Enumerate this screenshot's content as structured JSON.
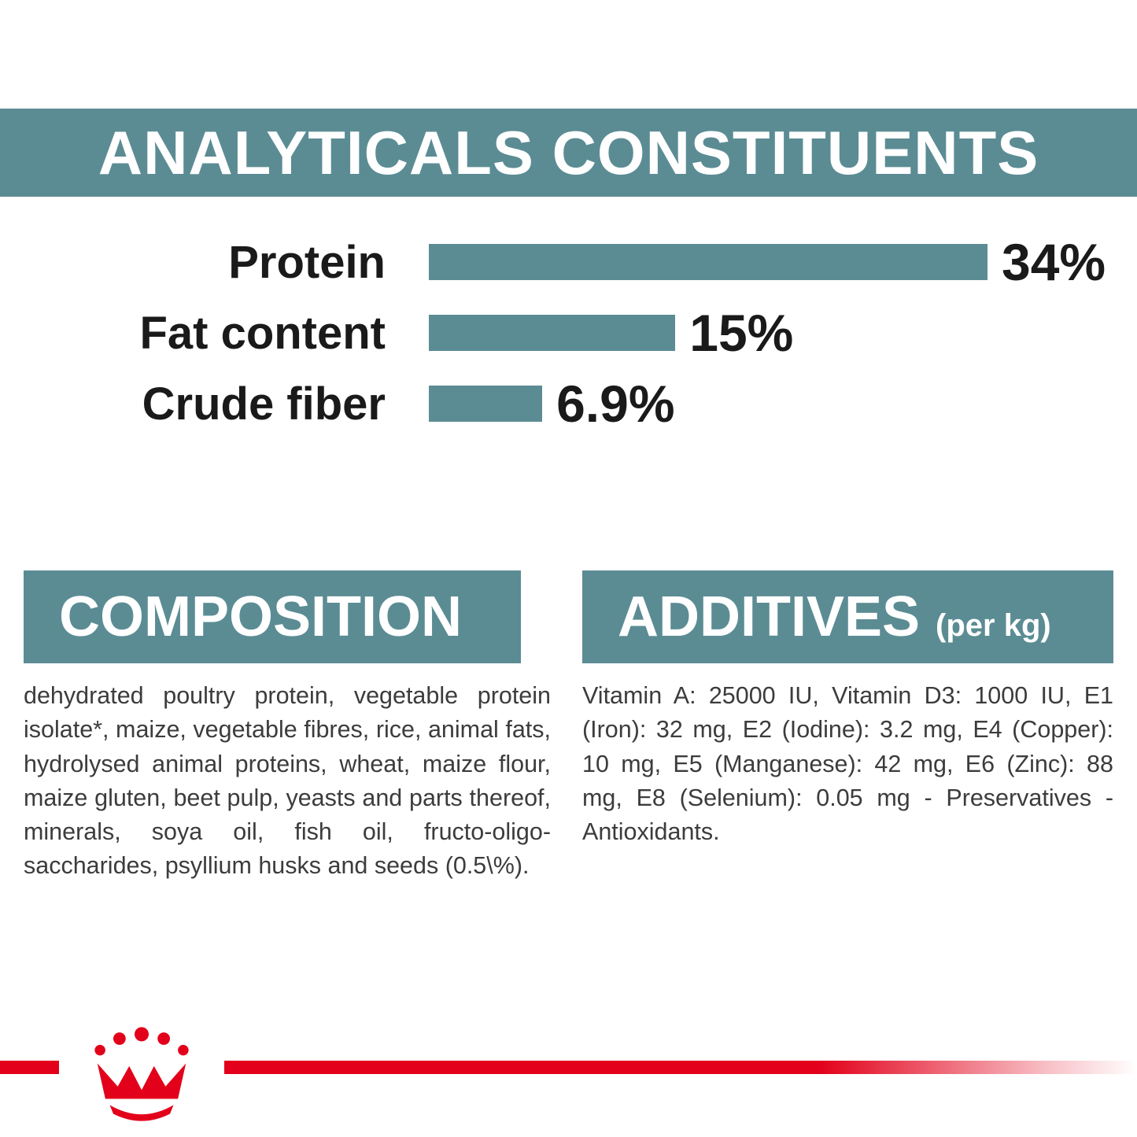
{
  "page": {
    "background": "#ffffff",
    "accent_teal": "#5b8c94",
    "brand_red": "#e2001a",
    "text_dark": "#1a1a1a",
    "body_text": "#3c3c3c"
  },
  "analyticals": {
    "title": "ANALYTICALS CONSTITUENTS"
  },
  "chart_data": {
    "type": "bar",
    "orientation": "horizontal",
    "title": "ANALYTICALS CONSTITUENTS",
    "categories": [
      "Protein",
      "Fat content",
      "Crude fiber"
    ],
    "values": [
      34,
      15,
      6.9
    ],
    "value_labels": [
      "34%",
      "15%",
      "6.9%"
    ],
    "unit": "%",
    "xlim": [
      0,
      34
    ],
    "bar_color": "#5b8c94",
    "grid": false,
    "legend": false
  },
  "composition": {
    "title": "COMPOSITION",
    "body": "dehydrated poultry protein, vegetable protein isolate*, maize, vegetable fibres, rice, animal fats, hydrolysed animal proteins, wheat, maize flour, maize gluten, beet pulp, yeasts and parts thereof, minerals, soya oil, fish oil, fructo-oligo-saccharides, psyllium husks and seeds (0.5\\%)."
  },
  "additives": {
    "title": "ADDITIVES",
    "title_suffix": "(per kg)",
    "body": "Vitamin A: 25000 IU, Vitamin D3: 1000 IU, E1 (Iron): 32 mg, E2 (Iodine): 3.2 mg, E4 (Copper): 10 mg, E5 (Manganese): 42 mg, E6 (Zinc): 88 mg, E8 (Selenium): 0.05 mg - Preservatives - Antioxidants."
  },
  "brand": {
    "logo": "royal-canin-crown"
  }
}
